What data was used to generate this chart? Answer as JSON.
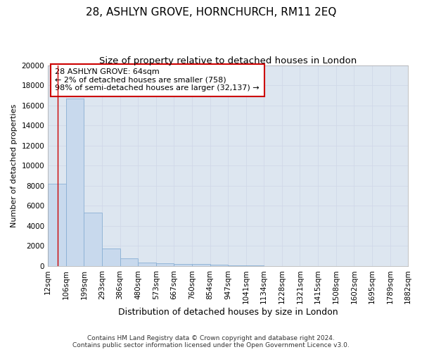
{
  "title": "28, ASHLYN GROVE, HORNCHURCH, RM11 2EQ",
  "subtitle": "Size of property relative to detached houses in London",
  "xlabel": "Distribution of detached houses by size in London",
  "ylabel": "Number of detached properties",
  "footer_line1": "Contains HM Land Registry data © Crown copyright and database right 2024.",
  "footer_line2": "Contains public sector information licensed under the Open Government Licence v3.0.",
  "annotation_title": "28 ASHLYN GROVE: 64sqm",
  "annotation_line2": "← 2% of detached houses are smaller (758)",
  "annotation_line3": "98% of semi-detached houses are larger (32,137) →",
  "property_size_sqm": 64,
  "bar_edges": [
    12,
    106,
    199,
    293,
    386,
    480,
    573,
    667,
    760,
    854,
    947,
    1041,
    1134,
    1228,
    1321,
    1415,
    1508,
    1602,
    1695,
    1789,
    1882
  ],
  "bar_heights": [
    8200,
    16700,
    5300,
    1750,
    750,
    370,
    280,
    200,
    170,
    110,
    55,
    35,
    20,
    12,
    8,
    5,
    4,
    3,
    2,
    1
  ],
  "bar_color": "#c8d9ed",
  "bar_edge_color": "#8ab0d4",
  "vline_color": "#cc0000",
  "vline_x": 64,
  "annotation_box_color": "#cc0000",
  "ylim": [
    0,
    20000
  ],
  "yticks": [
    0,
    2000,
    4000,
    6000,
    8000,
    10000,
    12000,
    14000,
    16000,
    18000,
    20000
  ],
  "grid_color": "#d0d8e8",
  "bg_color": "#dde6f0",
  "fig_bg_color": "#ffffff",
  "title_fontsize": 11,
  "subtitle_fontsize": 9.5,
  "xlabel_fontsize": 9,
  "ylabel_fontsize": 8,
  "tick_fontsize": 7.5,
  "annotation_fontsize": 8,
  "footer_fontsize": 6.5
}
